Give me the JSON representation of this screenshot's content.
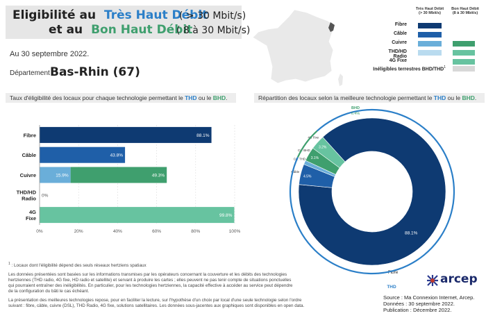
{
  "header": {
    "line1_prefix": "Eligibilité au",
    "line1_thd": "Très Haut Débit",
    "line1_range": "( > 30 Mbit/s)",
    "line2_prefix": "et au",
    "line2_bhd": "Bon Haut Débit",
    "line2_range": "( 8 à 30 Mbit/s)"
  },
  "date": "Au 30 septembre 2022.",
  "department": {
    "label": "Département :",
    "value": "Bas-Rhin (67)"
  },
  "legend": {
    "col_thd": [
      "Très Haut Débit",
      "(> 30 Mbit/s)"
    ],
    "col_bhd": [
      "Bon Haut Débit",
      "(8 à 30 Mbit/s)"
    ],
    "rows": [
      {
        "label": "Fibre",
        "thd_color": "#0e3a72",
        "bhd_color": null
      },
      {
        "label": "Câble",
        "thd_color": "#1f5fa8",
        "bhd_color": null
      },
      {
        "label": "Cuivre",
        "thd_color": "#6aaed9",
        "bhd_color": "#3f9f6e"
      },
      {
        "label": "THD/HD Radio",
        "thd_color": "#b9dbef",
        "bhd_color": "#67c3a0"
      },
      {
        "label": "4G Fixe",
        "thd_color": null,
        "bhd_color": "#67c3a0"
      }
    ],
    "ineligible_label": "Inéligibles terrestres BHD/THD",
    "ineligible_mark": "1",
    "ineligible_color": "#d8d8d8"
  },
  "left_subtitle": {
    "prefix": "Taux d'éligibilité des locaux pour chaque technologie permettant le ",
    "thd": "THD",
    "mid": " ou le ",
    "bhd": "BHD",
    "suffix": "."
  },
  "right_subtitle": {
    "prefix": "Répartition des locaux selon la meilleure technologie permettant le ",
    "thd": "THD",
    "mid": " ou le ",
    "bhd": "BHD",
    "suffix": "."
  },
  "chart_data": [
    {
      "type": "bar",
      "orientation": "horizontal",
      "stacked": true,
      "categories": [
        "Fibre",
        "Câble",
        "Cuivre",
        "THD/HD Radio",
        "4G Fixe"
      ],
      "series": [
        {
          "color": "#0e3a72",
          "values": [
            88.1,
            null,
            null,
            null,
            null
          ],
          "labels": [
            "88.1%",
            "",
            "",
            "",
            ""
          ]
        },
        {
          "color": "#1f5fa8",
          "values": [
            null,
            43.8,
            null,
            null,
            null
          ],
          "labels": [
            "",
            "43.8%",
            "",
            "",
            ""
          ]
        },
        {
          "color": "#6aaed9",
          "values": [
            null,
            null,
            15.9,
            null,
            null
          ],
          "labels": [
            "",
            "",
            "15.9%",
            "",
            ""
          ]
        },
        {
          "color": "#3f9f6e",
          "values": [
            null,
            null,
            49.3,
            0,
            null
          ],
          "labels": [
            "",
            "",
            "49.3%",
            "0%",
            ""
          ]
        },
        {
          "color": "#67c3a0",
          "values": [
            null,
            null,
            null,
            null,
            99.8
          ],
          "labels": [
            "",
            "",
            "",
            "",
            "99.8%"
          ]
        }
      ],
      "xlim": [
        0,
        100
      ],
      "xticks": [
        "0%",
        "20%",
        "40%",
        "60%",
        "80%",
        "100%"
      ],
      "grid": true
    },
    {
      "type": "pie",
      "donut": true,
      "slices": [
        {
          "label": "Fibre",
          "value": 88.1,
          "value_label": "88.1%",
          "color": "#0e3a72"
        },
        {
          "label": "Câble",
          "value": 4.5,
          "value_label": "4.5%",
          "color": "#1f5fa8"
        },
        {
          "label": "Cu. THD",
          "value": 0.9,
          "value_label": "",
          "color": "#6aaed9"
        },
        {
          "label": "Cu. BHD",
          "value": 3.1,
          "value_label": "3.1%",
          "color": "#3f9f6e"
        },
        {
          "label": "4G Fixe",
          "value": 3.2,
          "value_label": "3.2%",
          "color": "#67c3a0"
        }
      ],
      "outer_ring": [
        {
          "label": "THD",
          "value": 93.5,
          "value_label": "93.5%",
          "color": "#2b7fc8"
        },
        {
          "label": "BHD",
          "value": 6.4,
          "value_label": "6.4%",
          "color": "#3f9f6e"
        }
      ]
    }
  ],
  "footnote": {
    "mark": "1",
    "lines": [
      ": Locaux dont l'éligibilité dépend des seuls réseaux hertziens spatiaux",
      "Les données présentées sont basées sur les informations transmises par les opérateurs concernant la couverture et les débits des technologies",
      "hertziennes (THD radio, 4G fixe, HD radio et satellite) et servant à produire les cartes ; elles peuvent ne pas tenir compte de situations ponctuelles",
      "qui pourraient entraîner des inéligibilités. En particulier, pour les technologies hertziennes, la capacité effective à accéder au service peut dépendre",
      "de la configuration du bâti le cas échéant.",
      "La présentation des meilleures technologies repose, pour en faciliter la lecture, sur l'hypothèse d'un choix par local d'une seule technologie selon l'ordre",
      "suivant : fibre, câble, cuivre (DSL), THD Radio, 4G fixe, solutions satellitaires. Les données sous-jacentes aux graphiques sont disponibles en open data."
    ]
  },
  "logo": {
    "text": "arcep"
  },
  "source": [
    "Source : Ma Connexion Internet, Arcep.",
    "Données : 30 septembre 2022.",
    "Publication : Décembre 2022."
  ],
  "colors": {
    "thd": "#2b7fc8",
    "bhd": "#3f9f6e",
    "map_fill": "#e9e9e9",
    "map_highlight": "#555555"
  }
}
